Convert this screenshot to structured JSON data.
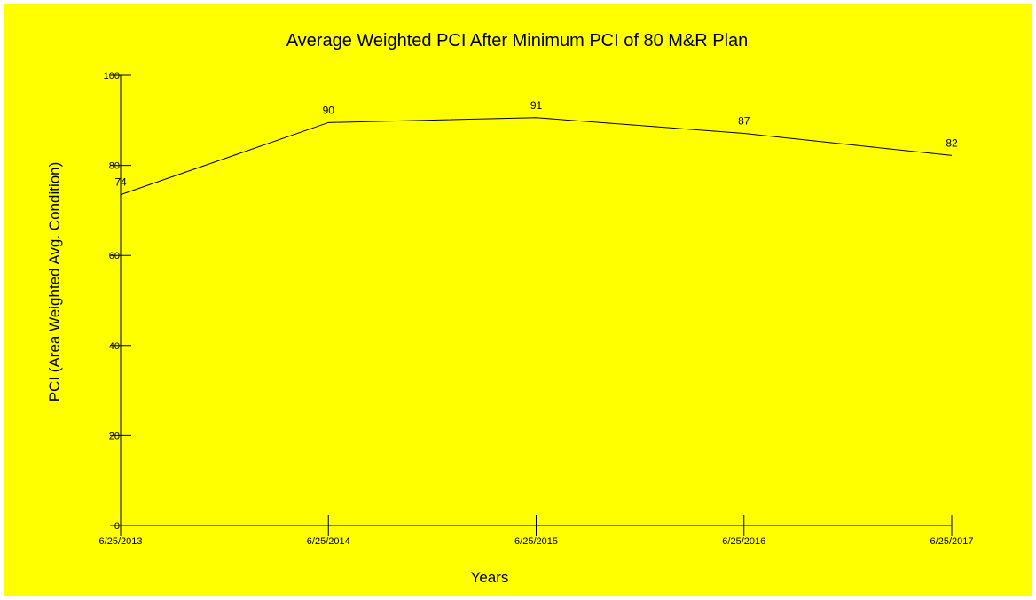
{
  "chart_data": {
    "type": "line",
    "title": "Average Weighted PCI After Minimum PCI of 80 M&R Plan",
    "xlabel": "Years",
    "ylabel": "PCI (Area Weighted Avg. Condition)",
    "categories": [
      "6/25/2013",
      "6/25/2014",
      "6/25/2015",
      "6/25/2016",
      "6/25/2017"
    ],
    "values": [
      73.5,
      89.5,
      90.6,
      87.1,
      82.2
    ],
    "data_labels": [
      "74",
      "90",
      "91",
      "87",
      "82"
    ],
    "y_ticks": [
      "0",
      "20",
      "40",
      "60",
      "80",
      "100"
    ],
    "ylim": [
      0,
      100
    ],
    "grid": false,
    "legend": "none",
    "colors": {
      "background": "#ffff00",
      "line": "#000000"
    }
  }
}
